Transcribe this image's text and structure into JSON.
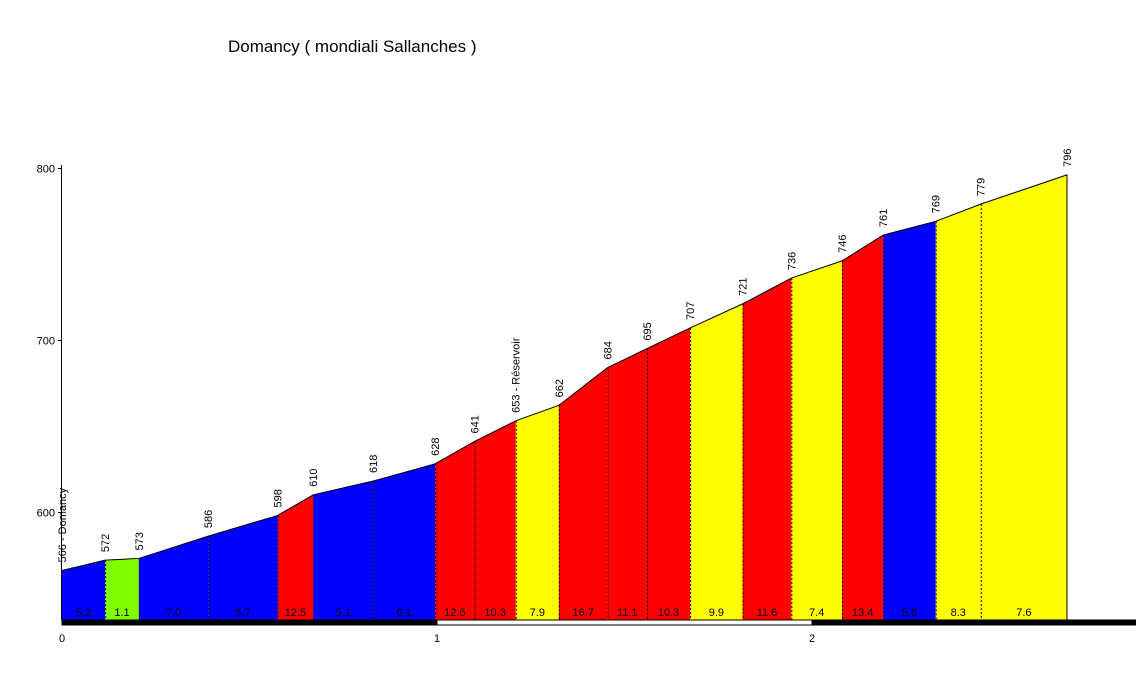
{
  "chart_data": {
    "type": "area",
    "title": "Domancy ( mondiali Sallanches )",
    "xlabel": "",
    "ylabel": "",
    "xlim": [
      0,
      2.88
    ],
    "ylim": [
      547,
      800
    ],
    "x_ticks": [
      {
        "value": 0,
        "label": "0"
      },
      {
        "value": 1,
        "label": "1"
      },
      {
        "value": 2,
        "label": "2"
      }
    ],
    "y_ticks": [
      {
        "value": 600,
        "label": "600"
      },
      {
        "value": 700,
        "label": "700"
      },
      {
        "value": 800,
        "label": "800"
      }
    ],
    "points": [
      {
        "km": 0.0,
        "elev": 566,
        "label": "566 - Domancy"
      },
      {
        "km": 0.115,
        "elev": 572,
        "label": "572"
      },
      {
        "km": 0.205,
        "elev": 573,
        "label": "573"
      },
      {
        "km": 0.39,
        "elev": 586,
        "label": "586"
      },
      {
        "km": 0.575,
        "elev": 598,
        "label": "598"
      },
      {
        "km": 0.67,
        "elev": 610,
        "label": "610"
      },
      {
        "km": 0.83,
        "elev": 618,
        "label": "618"
      },
      {
        "km": 0.995,
        "elev": 628,
        "label": "628"
      },
      {
        "km": 1.1,
        "elev": 641,
        "label": "641"
      },
      {
        "km": 1.21,
        "elev": 653,
        "label": "653 - Réservoir"
      },
      {
        "km": 1.325,
        "elev": 662,
        "label": "662"
      },
      {
        "km": 1.455,
        "elev": 684,
        "label": "684"
      },
      {
        "km": 1.56,
        "elev": 695,
        "label": "695"
      },
      {
        "km": 1.675,
        "elev": 707,
        "label": "707"
      },
      {
        "km": 1.815,
        "elev": 721,
        "label": "721"
      },
      {
        "km": 1.945,
        "elev": 736,
        "label": "736"
      },
      {
        "km": 2.08,
        "elev": 746,
        "label": "746"
      },
      {
        "km": 2.19,
        "elev": 761,
        "label": "761"
      },
      {
        "km": 2.33,
        "elev": 769,
        "label": "769"
      },
      {
        "km": 2.45,
        "elev": 779,
        "label": "779"
      },
      {
        "km": 2.68,
        "elev": 796,
        "label": "796"
      }
    ],
    "segments": [
      {
        "gradient": "5.2",
        "color": "#0000ff"
      },
      {
        "gradient": "1.1",
        "color": "#80ff00"
      },
      {
        "gradient": "7.0",
        "color": "#0000ff"
      },
      {
        "gradient": "6.7",
        "color": "#0000ff"
      },
      {
        "gradient": "12.5",
        "color": "#ff0000"
      },
      {
        "gradient": "5.1",
        "color": "#0000ff"
      },
      {
        "gradient": "6.1",
        "color": "#0000ff"
      },
      {
        "gradient": "12.6",
        "color": "#ff0000"
      },
      {
        "gradient": "10.3",
        "color": "#ff0000"
      },
      {
        "gradient": "7.9",
        "color": "#ffff00"
      },
      {
        "gradient": "16.7",
        "color": "#ff0000"
      },
      {
        "gradient": "11.1",
        "color": "#ff0000"
      },
      {
        "gradient": "10.3",
        "color": "#ff0000"
      },
      {
        "gradient": "9.9",
        "color": "#ffff00"
      },
      {
        "gradient": "11.6",
        "color": "#ff0000"
      },
      {
        "gradient": "7.4",
        "color": "#ffff00"
      },
      {
        "gradient": "13.4",
        "color": "#ff0000"
      },
      {
        "gradient": "5.8",
        "color": "#0000ff"
      },
      {
        "gradient": "8.3",
        "color": "#ffff00"
      },
      {
        "gradient": "7.6",
        "color": "#ffff00"
      }
    ],
    "grid": false,
    "legend": "none"
  }
}
